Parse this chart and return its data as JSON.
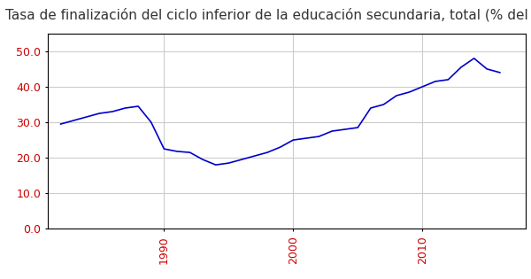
{
  "title": "Tasa de finalización del ciclo inferior de la educación secundaria, total (% del grupo e",
  "years": [
    1982,
    1983,
    1984,
    1985,
    1986,
    1987,
    1988,
    1989,
    1990,
    1991,
    1992,
    1993,
    1994,
    1995,
    1996,
    1997,
    1998,
    1999,
    2000,
    2001,
    2002,
    2003,
    2004,
    2005,
    2006,
    2007,
    2008,
    2009,
    2010,
    2011,
    2012,
    2013,
    2014,
    2015,
    2016
  ],
  "values": [
    29.5,
    30.5,
    31.5,
    32.5,
    33.0,
    34.0,
    34.5,
    30.0,
    22.5,
    21.8,
    21.5,
    19.5,
    18.0,
    18.5,
    19.5,
    20.5,
    21.5,
    23.0,
    25.0,
    25.5,
    26.0,
    27.5,
    28.0,
    28.5,
    34.0,
    35.0,
    37.5,
    38.5,
    40.0,
    41.5,
    42.0,
    45.5,
    48.0,
    45.0,
    44.0
  ],
  "line_color": "#0000CC",
  "bg_color": "#FFFFFF",
  "plot_bg_color": "#FFFFFF",
  "grid_color": "#CCCCCC",
  "ylim": [
    0,
    55
  ],
  "yticks": [
    0.0,
    10.0,
    20.0,
    30.0,
    40.0,
    50.0
  ],
  "xlim": [
    1981,
    2018
  ],
  "xticks": [
    1990,
    2000,
    2010
  ],
  "title_color": "#333333",
  "title_fontsize": 11,
  "tick_fontsize": 9,
  "tick_color": "#CC0000"
}
